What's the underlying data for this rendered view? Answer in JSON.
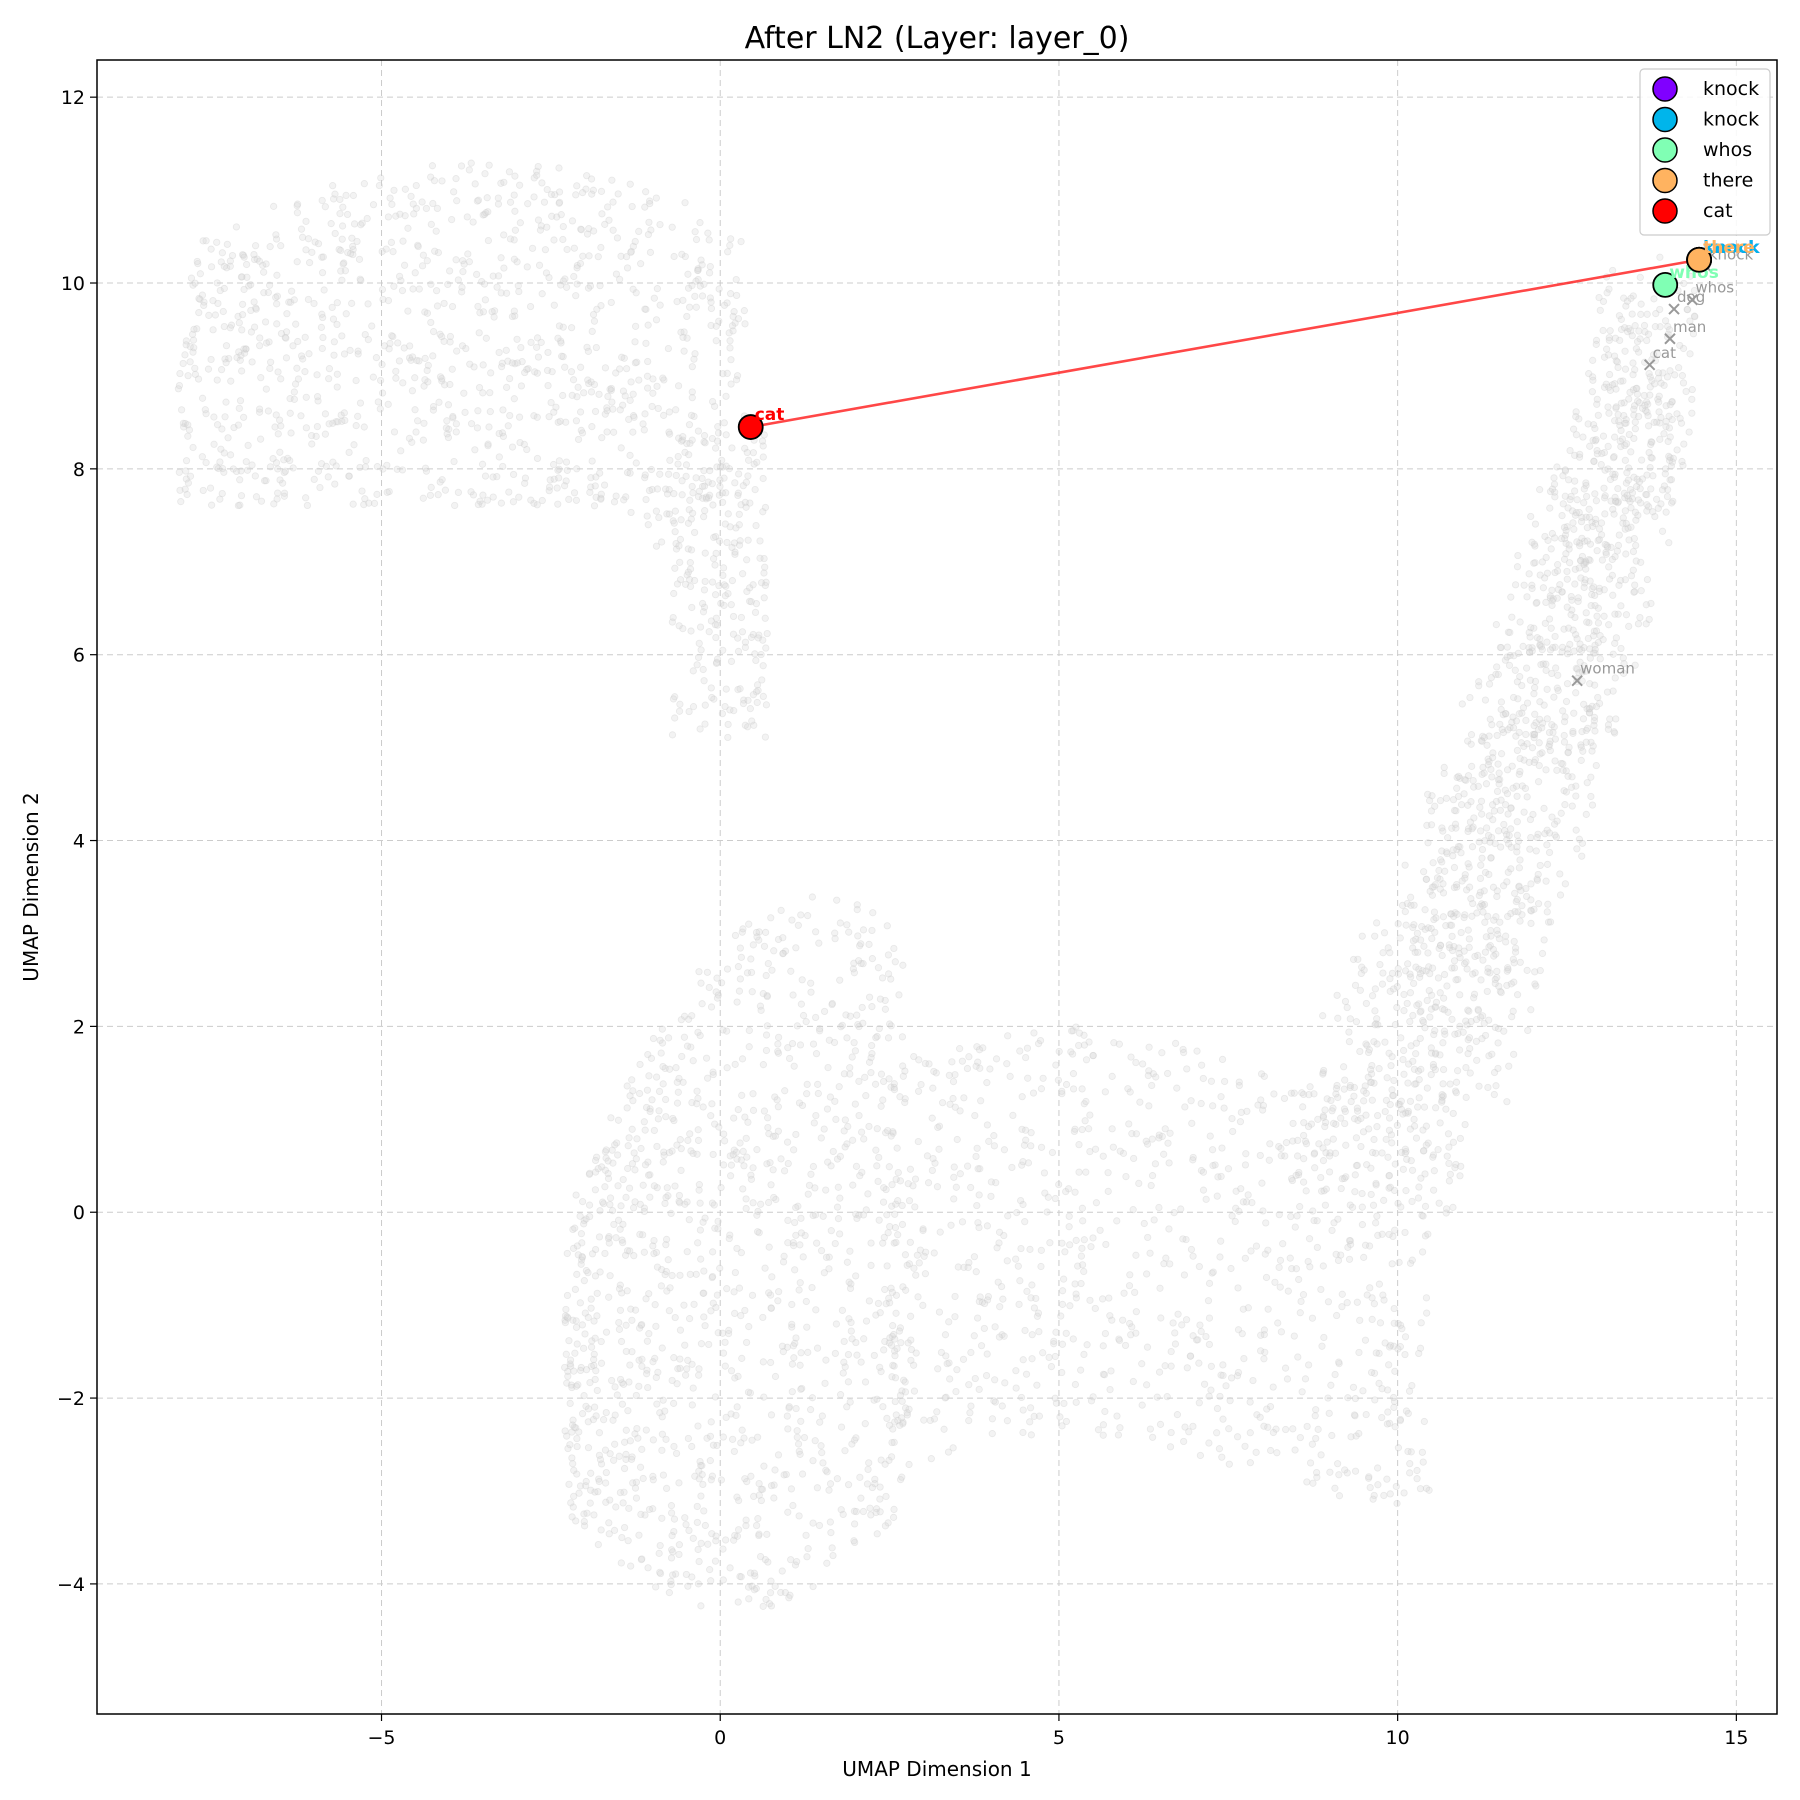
{
  "chart_data": {
    "type": "scatter",
    "title": "After LN2 (Layer: layer_0)",
    "xlabel": "UMAP Dimension 1",
    "ylabel": "UMAP Dimension 2",
    "xlim": [
      -9.2,
      15.6
    ],
    "ylim": [
      -5.4,
      12.4
    ],
    "xticks": [
      -5,
      0,
      5,
      10,
      15
    ],
    "xtick_labels": [
      "−5",
      "0",
      "5",
      "10",
      "15"
    ],
    "yticks": [
      -4,
      -2,
      0,
      2,
      4,
      6,
      8,
      10,
      12
    ],
    "ytick_labels": [
      "−4",
      "−2",
      "0",
      "2",
      "4",
      "6",
      "8",
      "10",
      "12"
    ],
    "grid": true,
    "legend_position": "top-right",
    "background_cloud": {
      "color": "#d3d3d3",
      "description_regions": [
        {
          "x": [
            -8,
            0.5
          ],
          "y": [
            6.5,
            11.5
          ]
        },
        {
          "x": [
            -2.3,
            2.8
          ],
          "y": [
            -4.6,
            3.6
          ]
        },
        {
          "x": [
            2.5,
            14.8
          ],
          "y": [
            -3.1,
            9.8
          ]
        }
      ]
    },
    "reference_points": [
      {
        "label": "knock",
        "x": 14.55,
        "y": 10.18
      },
      {
        "label": "whos",
        "x": 14.35,
        "y": 9.82
      },
      {
        "label": "dog",
        "x": 14.08,
        "y": 9.72
      },
      {
        "label": "man",
        "x": 14.02,
        "y": 9.4
      },
      {
        "label": "cat",
        "x": 13.72,
        "y": 9.12
      },
      {
        "label": "woman",
        "x": 12.65,
        "y": 5.72
      }
    ],
    "series": [
      {
        "name": "knock",
        "x": 14.45,
        "y": 10.25,
        "color": "#8000ff"
      },
      {
        "name": "knock",
        "x": 14.45,
        "y": 10.25,
        "color": "#00b5eb"
      },
      {
        "name": "whos",
        "x": 13.95,
        "y": 9.98,
        "color": "#80ffb4"
      },
      {
        "name": "there",
        "x": 14.45,
        "y": 10.25,
        "color": "#ffb360"
      },
      {
        "name": "cat",
        "x": 0.45,
        "y": 8.45,
        "color": "#ff0000"
      }
    ],
    "trajectory": {
      "color": "#ff0000",
      "from": [
        14.45,
        10.25
      ],
      "to": [
        0.45,
        8.45
      ]
    }
  }
}
